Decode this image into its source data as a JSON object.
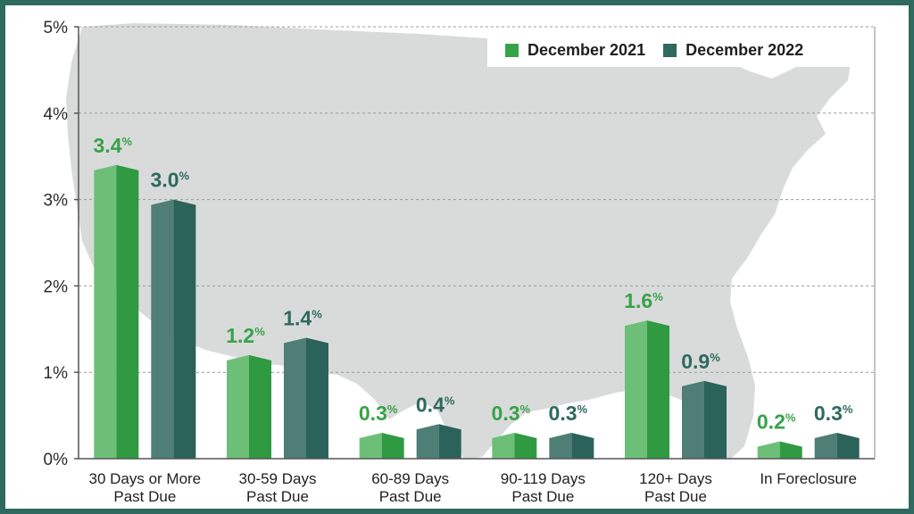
{
  "chart_data": {
    "type": "bar",
    "categories": [
      "30 Days or More\nPast Due",
      "30-59 Days\nPast Due",
      "60-89 Days\nPast Due",
      "90-119 Days\nPast Due",
      "120+ Days\nPast Due",
      "In Foreclosure"
    ],
    "series": [
      {
        "name": "December 2021",
        "values": [
          3.4,
          1.2,
          0.3,
          0.3,
          1.6,
          0.2
        ],
        "color": "#38a249"
      },
      {
        "name": "December 2022",
        "values": [
          3.0,
          1.4,
          0.4,
          0.3,
          0.9,
          0.3
        ],
        "color": "#2e6a5e"
      }
    ],
    "data_labels": [
      [
        "3.4",
        "1.2",
        "0.3",
        "0.3",
        "1.6",
        "0.2"
      ],
      [
        "3.0",
        "1.4",
        "0.4",
        "0.3",
        "0.9",
        "0.3"
      ]
    ],
    "label_suffix": "%",
    "yticks": [
      "0%",
      "1%",
      "2%",
      "3%",
      "4%",
      "5%"
    ],
    "ylim": [
      0,
      5
    ],
    "grid": true,
    "legend_position": "top-right",
    "background": "map of the United States"
  },
  "colors": {
    "frame": "#2e6a5e",
    "map": "#d9dbdb",
    "grid": "#9a9a9a"
  },
  "legend": {
    "items": [
      {
        "label": "December 2021",
        "color": "#38a249"
      },
      {
        "label": "December 2022",
        "color": "#2e6a5e"
      }
    ]
  }
}
